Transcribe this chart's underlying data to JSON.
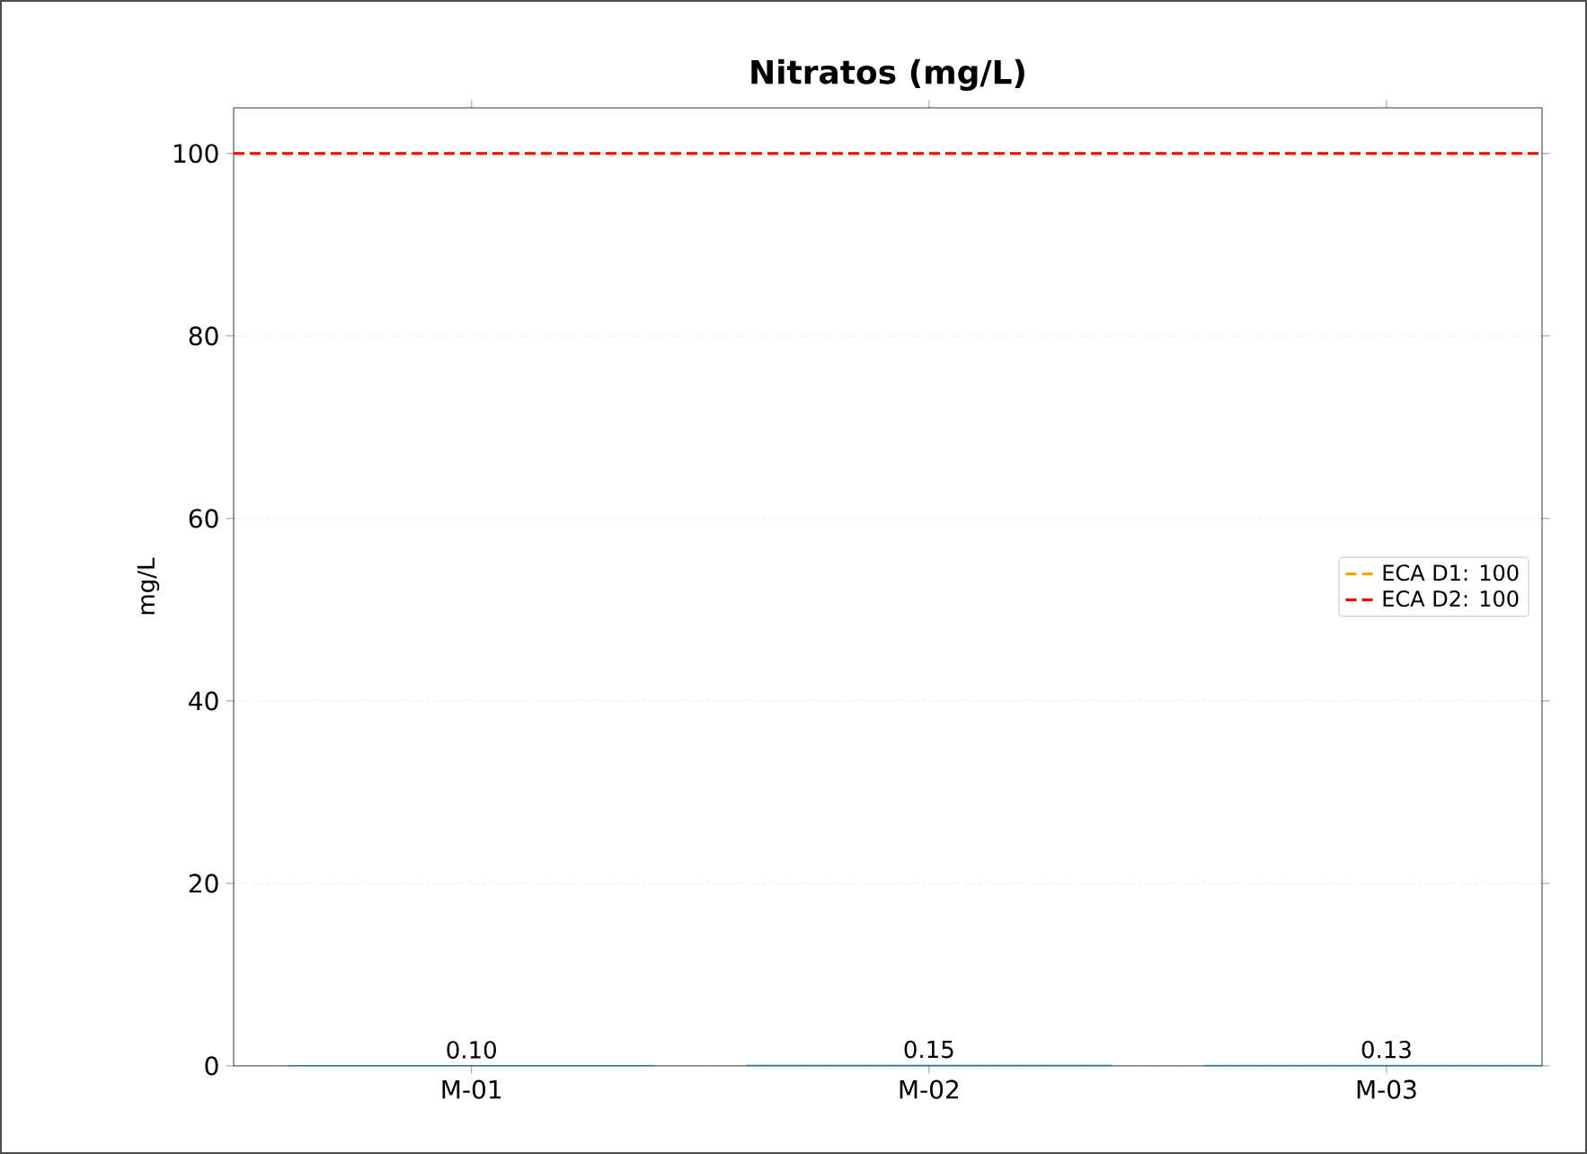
{
  "chart_data": {
    "type": "bar",
    "title": "Nitratos (mg/L)",
    "ylabel": "mg/L",
    "categories": [
      "M-01",
      "M-02",
      "M-03"
    ],
    "values": [
      0.1,
      0.15,
      0.13
    ],
    "value_labels": [
      "0.10",
      "0.15",
      "0.13"
    ],
    "color": "#1f77b4",
    "ylim": [
      0,
      105
    ],
    "yticks": [
      0,
      20,
      40,
      60,
      80,
      100
    ],
    "grid": "y",
    "ref_lines": [
      {
        "axis": "y",
        "value": 100,
        "label": "ECA D1: 100",
        "color": "#ffa500",
        "line_style": "dashed"
      },
      {
        "axis": "y",
        "value": 100,
        "label": "ECA D2: 100",
        "color": "#ff0000",
        "line_style": "dashed"
      }
    ],
    "legend": "right"
  }
}
